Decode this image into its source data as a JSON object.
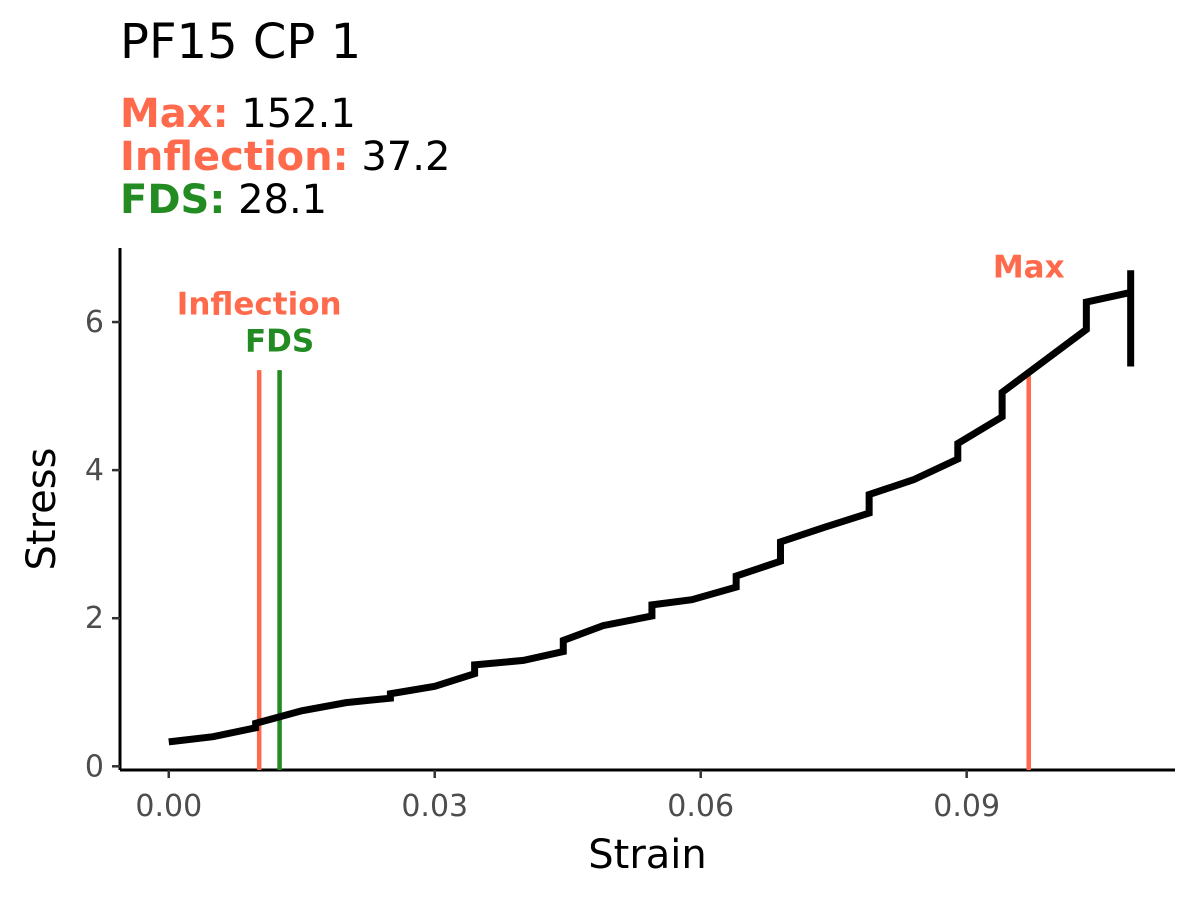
{
  "header": {
    "title": "PF15 CP 1",
    "stats": [
      {
        "key": "Max:",
        "value": "152.1",
        "color": "#FF6A4D"
      },
      {
        "key": "Inflection:",
        "value": "37.2",
        "color": "#FF6A4D"
      },
      {
        "key": "FDS:",
        "value": "28.1",
        "color": "#228B22"
      }
    ]
  },
  "chart_data": {
    "type": "line",
    "xlabel": "Strain",
    "ylabel": "Stress",
    "xlim": [
      -0.0055,
      0.1135
    ],
    "ylim": [
      -0.05,
      7.0
    ],
    "xticks": [
      0.0,
      0.03,
      0.06,
      0.09
    ],
    "xtick_labels": [
      "0.00",
      "0.03",
      "0.06",
      "0.09"
    ],
    "yticks": [
      0,
      2,
      4,
      6
    ],
    "ytick_labels": [
      "0",
      "2",
      "4",
      "6"
    ],
    "grid": false,
    "series": [
      {
        "color": "#000000",
        "x": [
          0.0,
          0.005,
          0.0098,
          0.0098,
          0.015,
          0.02,
          0.025,
          0.025,
          0.03,
          0.0345,
          0.0345,
          0.04,
          0.0445,
          0.0445,
          0.049,
          0.0545,
          0.0545,
          0.059,
          0.064,
          0.064,
          0.069,
          0.069,
          0.074,
          0.079,
          0.079,
          0.084,
          0.089,
          0.089,
          0.094,
          0.094,
          0.1035,
          0.1035,
          0.1085,
          0.1085,
          0.1085
        ],
        "y": [
          0.33,
          0.4,
          0.52,
          0.58,
          0.75,
          0.86,
          0.92,
          0.98,
          1.08,
          1.25,
          1.37,
          1.43,
          1.55,
          1.7,
          1.9,
          2.03,
          2.18,
          2.25,
          2.42,
          2.57,
          2.77,
          3.03,
          3.23,
          3.42,
          3.67,
          3.87,
          4.15,
          4.36,
          4.72,
          5.05,
          5.9,
          6.27,
          6.4,
          6.7,
          5.4
        ]
      }
    ],
    "markers": [
      {
        "label": "Inflection",
        "x": 0.0102,
        "color": "#FF6A4D",
        "label_y": 6.1
      },
      {
        "label": "FDS",
        "x": 0.0125,
        "color": "#228B22",
        "label_y": 5.6
      },
      {
        "label": "Max",
        "x": 0.097,
        "color": "#FF6A4D",
        "label_y": 6.6
      }
    ]
  }
}
